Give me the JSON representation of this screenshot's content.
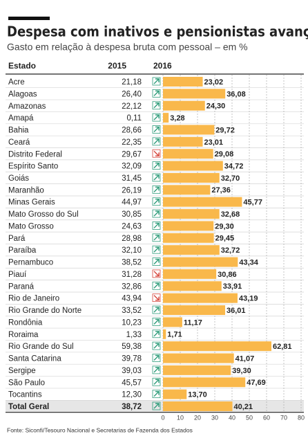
{
  "chart_data": {
    "type": "bar",
    "title": "Despesa com inativos e pensionistas avança",
    "subtitle": "Gasto em relação à despesa bruta com pessoal – em %",
    "category_header": "Estado",
    "source": "Fonte: Siconfi/Tesouro Nacional e Secretarias de Fazenda dos Estados",
    "categories": [
      "Acre",
      "Alagoas",
      "Amazonas",
      "Amapá",
      "Bahia",
      "Ceará",
      "Distrito Federal",
      "Espírito Santo",
      "Goiás",
      "Maranhão",
      "Minas Gerais",
      "Mato Grosso do Sul",
      "Mato Grosso",
      "Pará",
      "Paraíba",
      "Pernambuco",
      "Piauí",
      "Paraná",
      "Rio de Janeiro",
      "Rio Grande do Norte",
      "Rondônia",
      "Roraima",
      "Rio Grande do Sul",
      "Santa Catarina",
      "Sergipe",
      "São Paulo",
      "Tocantins",
      "Total Geral"
    ],
    "series": [
      {
        "name": "2015",
        "values": [
          21.18,
          26.4,
          22.12,
          0.11,
          28.66,
          22.35,
          29.67,
          32.09,
          31.45,
          26.19,
          44.97,
          30.85,
          24.63,
          28.98,
          32.1,
          38.52,
          31.28,
          32.86,
          43.94,
          33.52,
          10.23,
          1.33,
          59.38,
          39.78,
          39.03,
          45.57,
          12.3,
          38.72
        ],
        "value_labels": [
          "21,18",
          "26,40",
          "22,12",
          "0,11",
          "28,66",
          "22,35",
          "29,67",
          "32,09",
          "31,45",
          "26,19",
          "44,97",
          "30,85",
          "24,63",
          "28,98",
          "32,10",
          "38,52",
          "31,28",
          "32,86",
          "43,94",
          "33,52",
          "10,23",
          "1,33",
          "59,38",
          "39,78",
          "39,03",
          "45,57",
          "12,30",
          "38,72"
        ]
      },
      {
        "name": "2016",
        "color": "#f9b84b",
        "values": [
          23.02,
          36.08,
          24.3,
          3.28,
          29.72,
          23.01,
          29.08,
          34.72,
          32.7,
          27.36,
          45.77,
          32.68,
          29.3,
          29.45,
          32.72,
          43.34,
          30.86,
          33.91,
          43.19,
          36.01,
          11.17,
          1.71,
          62.81,
          41.07,
          39.3,
          47.69,
          13.7,
          40.21
        ],
        "value_labels": [
          "23,02",
          "36,08",
          "24,30",
          "3,28",
          "29,72",
          "23,01",
          "29,08",
          "34,72",
          "32,70",
          "27,36",
          "45,77",
          "32,68",
          "29,30",
          "29,45",
          "32,72",
          "43,34",
          "30,86",
          "33,91",
          "43,19",
          "36,01",
          "11,17",
          "1,71",
          "62,81",
          "41,07",
          "39,30",
          "47,69",
          "13,70",
          "40,21"
        ]
      }
    ],
    "xlim": [
      0,
      80
    ],
    "xticks": [
      0,
      10,
      20,
      30,
      40,
      50,
      60,
      70,
      80
    ],
    "grid": true
  }
}
